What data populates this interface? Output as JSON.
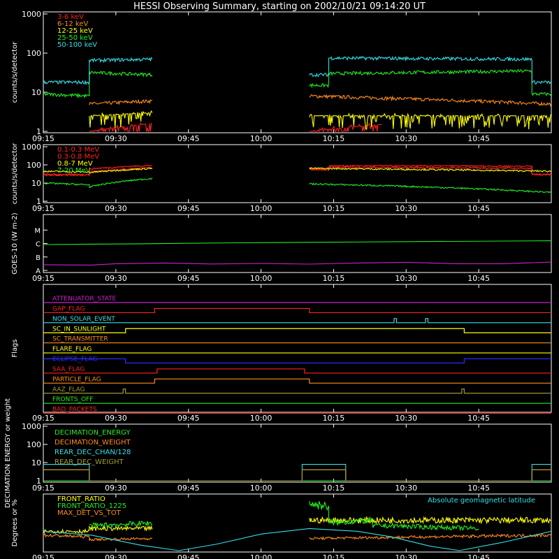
{
  "title": "HESSI Observing Summary, starting on 2002/10/21 09:14:20 UT",
  "colors": {
    "background": "#000000",
    "axis": "#ffffff",
    "red": "#ff2020",
    "orange": "#ff8c1a",
    "yellow": "#ffff00",
    "green": "#22ee22",
    "cyan": "#33e0e8",
    "magenta": "#cc22cc",
    "blue": "#2a2aff",
    "olive": "#a09a30"
  },
  "time_ticks": [
    "09:15",
    "09:30",
    "09:45",
    "10:00",
    "10:15",
    "10:30",
    "10:45"
  ],
  "chart_data": [
    {
      "id": "xray",
      "type": "line",
      "ylabel": "counts/s/detector",
      "yscale": "log",
      "ylim": [
        1,
        1000
      ],
      "yticks": [
        "1",
        "10",
        "100",
        "1000"
      ],
      "x_range_min": [
        0,
        105
      ],
      "series": [
        {
          "name": "3-6 keV",
          "color": "#ff2020",
          "style": "spiky",
          "segments": [
            [
              9.5,
              22.5,
              1,
              1.6
            ],
            [
              55,
              70,
              1,
              1.5
            ]
          ]
        },
        {
          "name": "6-12 keV",
          "color": "#ff8c1a",
          "segments": [
            [
              9.5,
              22.5,
              5,
              6
            ],
            [
              55,
              105,
              8,
              5
            ]
          ]
        },
        {
          "name": "12-25 keV",
          "color": "#ffff00",
          "style": "spiky",
          "segments": [
            [
              9.5,
              22.5,
              2.5,
              3
            ],
            [
              55,
              105,
              2.5,
              2.5
            ]
          ]
        },
        {
          "name": "25-50 keV",
          "color": "#22ee22",
          "segments": [
            [
              0,
              9.5,
              9,
              8
            ],
            [
              9.5,
              22.5,
              32,
              28
            ],
            [
              55,
              59,
              15,
              15
            ],
            [
              59,
              101,
              30,
              35
            ],
            [
              101,
              105,
              9,
              9
            ]
          ]
        },
        {
          "name": "50-100 keV",
          "color": "#33e0e8",
          "segments": [
            [
              0,
              9.5,
              18,
              18
            ],
            [
              9.5,
              22.5,
              65,
              70
            ],
            [
              55,
              59,
              28,
              28
            ],
            [
              59,
              101,
              75,
              70
            ],
            [
              101,
              105,
              18,
              18
            ]
          ]
        }
      ]
    },
    {
      "id": "gamma",
      "type": "line",
      "ylabel": "counts/s/detector",
      "yscale": "log",
      "ylim": [
        1,
        1000
      ],
      "yticks": [
        "1",
        "10",
        "100",
        "1000"
      ],
      "x_range_min": [
        0,
        105
      ],
      "series": [
        {
          "name": "0.1-0.3 MeV",
          "color": "#ff2020",
          "segments": [
            [
              0,
              9.5,
              30,
              30
            ],
            [
              9.5,
              22.5,
              60,
              95
            ],
            [
              55,
              59,
              60,
              60
            ],
            [
              59,
              101,
              90,
              85
            ],
            [
              101,
              105,
              30,
              30
            ]
          ]
        },
        {
          "name": "0.3-0.8 MeV",
          "color": "#ff2020",
          "segments": [
            [
              0,
              9.5,
              28,
              28
            ],
            [
              9.5,
              22.5,
              42,
              70
            ],
            [
              55,
              59,
              55,
              55
            ],
            [
              59,
              101,
              75,
              65
            ],
            [
              101,
              105,
              30,
              30
            ]
          ]
        },
        {
          "name": "0.8-7 MeV",
          "color": "#ffff00",
          "segments": [
            [
              0,
              9.5,
              45,
              40
            ],
            [
              9.5,
              22.5,
              38,
              65
            ],
            [
              55,
              105,
              65,
              45
            ]
          ]
        },
        {
          "name": "7-20 MeV",
          "color": "#22ee22",
          "segments": [
            [
              0,
              9.5,
              10,
              8
            ],
            [
              9.5,
              22.5,
              6,
              18
            ],
            [
              55,
              105,
              9,
              3
            ]
          ]
        }
      ]
    },
    {
      "id": "goes",
      "type": "line",
      "ylabel": "GOES-10 (W m-2)",
      "yticks": [
        "A",
        "B",
        "C",
        "M"
      ],
      "ylim": [
        0,
        4
      ],
      "x_range_min": [
        0,
        105
      ],
      "series": [
        {
          "name": "",
          "color": "#22ee22",
          "points": [
            [
              0,
              1.92
            ],
            [
              20,
              1.98
            ],
            [
              40,
              2.05
            ],
            [
              60,
              2.1
            ],
            [
              80,
              2.15
            ],
            [
              105,
              2.2
            ]
          ]
        },
        {
          "name": "",
          "color": "#cc22cc",
          "points": [
            [
              0,
              0.42
            ],
            [
              10,
              0.4
            ],
            [
              15,
              0.5
            ],
            [
              25,
              0.55
            ],
            [
              35,
              0.48
            ],
            [
              45,
              0.52
            ],
            [
              55,
              0.47
            ],
            [
              65,
              0.55
            ],
            [
              75,
              0.6
            ],
            [
              85,
              0.5
            ],
            [
              95,
              0.5
            ],
            [
              105,
              0.62
            ]
          ]
        }
      ]
    },
    {
      "id": "flags",
      "type": "line",
      "ylabel": "Flags",
      "x_range_min": [
        0,
        105
      ],
      "series": [
        {
          "name": "ATTENUATOR_STATE",
          "color": "#cc22cc",
          "transitions": []
        },
        {
          "name": "GAP_FLAG",
          "color": "#ff2020",
          "transitions": [
            [
              0,
              0
            ],
            [
              23,
              1
            ],
            [
              55,
              0
            ]
          ]
        },
        {
          "name": "NON_SOLAR_EVENT",
          "color": "#33e0e8",
          "transitions": [
            [
              0,
              0
            ],
            [
              72.5,
              1
            ],
            [
              73,
              0
            ],
            [
              79,
              1
            ],
            [
              79.5,
              0
            ]
          ]
        },
        {
          "name": "SC_IN_SUNLIGHT",
          "color": "#ffff00",
          "transitions": [
            [
              0,
              0
            ],
            [
              17,
              1
            ],
            [
              87,
              0
            ]
          ]
        },
        {
          "name": "SC_TRANSMITTER",
          "color": "#ff8c1a",
          "transitions": []
        },
        {
          "name": "FLARE_FLAG",
          "color": "#ffff00",
          "transitions": []
        },
        {
          "name": "ECLIPSE_FLAG",
          "color": "#2a2aff",
          "transitions": [
            [
              0,
              1
            ],
            [
              17,
              0
            ],
            [
              87,
              1
            ]
          ]
        },
        {
          "name": "SAA_FLAG",
          "color": "#ff2020",
          "transitions": [
            [
              0,
              0
            ],
            [
              23.5,
              1
            ],
            [
              54,
              0
            ]
          ]
        },
        {
          "name": "PARTICLE_FLAG",
          "color": "#ff8c1a",
          "transitions": [
            [
              0,
              0
            ],
            [
              23,
              1
            ],
            [
              55,
              0
            ]
          ]
        },
        {
          "name": "AAZ_FLAG",
          "color": "#a09a30",
          "transitions": [
            [
              0,
              0
            ],
            [
              16.5,
              1
            ],
            [
              17,
              0
            ],
            [
              86.5,
              1
            ],
            [
              87,
              0
            ]
          ]
        },
        {
          "name": "FRONTS_OFF",
          "color": "#22ee22",
          "transitions": []
        },
        {
          "name": "BAD_PACKETS",
          "color": "#ff2020",
          "transitions": []
        }
      ]
    },
    {
      "id": "decimation",
      "type": "line",
      "ylabel": "DECIMATION ENERGY or weight",
      "yscale": "log",
      "ylim": [
        1,
        1000
      ],
      "yticks": [
        "1",
        "10",
        "100",
        "1000"
      ],
      "x_range_min": [
        0,
        105
      ],
      "series": [
        {
          "name": "DECIMATION_ENERGY",
          "color": "#22ee22",
          "steps": [
            [
              0,
              1
            ],
            [
              105,
              1
            ]
          ]
        },
        {
          "name": "DECIMATION_WEIGHT",
          "color": "#ff8c1a",
          "steps": [
            [
              0,
              4
            ],
            [
              9.5,
              1
            ],
            [
              53.5,
              4
            ],
            [
              62.5,
              1
            ],
            [
              101,
              4
            ],
            [
              105,
              4
            ]
          ]
        },
        {
          "name": "REAR_DEC_CHAN/128",
          "color": "#33e0e8",
          "steps": [
            [
              0,
              8
            ],
            [
              9.5,
              1
            ],
            [
              53.5,
              8
            ],
            [
              62.5,
              1
            ],
            [
              101,
              8
            ],
            [
              105,
              8
            ]
          ]
        },
        {
          "name": "REAR_DEC_WEIGHT",
          "color": "#a09a30",
          "steps": [
            [
              0,
              4
            ],
            [
              9.5,
              1
            ],
            [
              53.5,
              4
            ],
            [
              62.5,
              1
            ],
            [
              101,
              4
            ],
            [
              105,
              4
            ]
          ]
        }
      ]
    },
    {
      "id": "ratio",
      "type": "line",
      "ylabel": "Degrees or %",
      "ylim": [
        0,
        100
      ],
      "x_range_min": [
        0,
        105
      ],
      "annotation": "Absolute geomagnetic latitude",
      "series": [
        {
          "name": "FRONT_RATIO",
          "color": "#ffff00",
          "segments": [
            [
              0,
              9.5,
              35,
              35
            ],
            [
              9.5,
              22.5,
              40,
              40
            ],
            [
              55,
              105,
              55,
              55
            ]
          ]
        },
        {
          "name": "FRONT_RATIO_1225",
          "color": "#22ee22",
          "segments": [
            [
              9.5,
              22.5,
              45,
              50
            ],
            [
              55,
              59,
              85,
              80
            ],
            [
              59,
              68,
              50,
              55
            ],
            [
              68,
              72,
              45,
              45
            ],
            [
              72,
              90,
              45,
              40
            ]
          ]
        },
        {
          "name": "MAX_DET_VS_TOT",
          "color": "#ff8c1a",
          "segments": [
            [
              0,
              9.5,
              28,
              25
            ],
            [
              9.5,
              22.5,
              20,
              22
            ],
            [
              55,
              105,
              22,
              28
            ]
          ]
        },
        {
          "name": "Absolute geomagnetic latitude",
          "color": "#33e0e8",
          "points": [
            [
              0,
              35
            ],
            [
              10,
              28
            ],
            [
              20,
              10
            ],
            [
              28,
              0
            ],
            [
              36,
              12
            ],
            [
              45,
              30
            ],
            [
              55,
              40
            ],
            [
              65,
              35
            ],
            [
              72,
              25
            ],
            [
              80,
              8
            ],
            [
              86,
              0
            ],
            [
              95,
              15
            ],
            [
              105,
              35
            ]
          ]
        }
      ]
    }
  ]
}
